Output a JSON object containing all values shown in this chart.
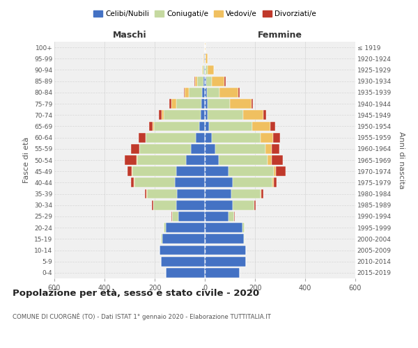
{
  "age_groups": [
    "0-4",
    "5-9",
    "10-14",
    "15-19",
    "20-24",
    "25-29",
    "30-34",
    "35-39",
    "40-44",
    "45-49",
    "50-54",
    "55-59",
    "60-64",
    "65-69",
    "70-74",
    "75-79",
    "80-84",
    "85-89",
    "90-94",
    "95-99",
    "100+"
  ],
  "birth_years": [
    "2015-2019",
    "2010-2014",
    "2005-2009",
    "2000-2004",
    "1995-1999",
    "1990-1994",
    "1985-1989",
    "1980-1984",
    "1975-1979",
    "1970-1974",
    "1965-1969",
    "1960-1964",
    "1955-1959",
    "1950-1954",
    "1945-1949",
    "1940-1944",
    "1935-1939",
    "1930-1934",
    "1925-1929",
    "1920-1924",
    "≤ 1919"
  ],
  "male": {
    "celibi": [
      155,
      175,
      180,
      170,
      155,
      105,
      115,
      110,
      120,
      115,
      75,
      55,
      35,
      22,
      18,
      15,
      10,
      5,
      2,
      2,
      0
    ],
    "coniugati": [
      0,
      0,
      0,
      5,
      10,
      25,
      90,
      120,
      160,
      175,
      195,
      205,
      200,
      180,
      145,
      100,
      55,
      25,
      5,
      2,
      0
    ],
    "vedovi": [
      0,
      0,
      0,
      0,
      0,
      0,
      0,
      2,
      2,
      2,
      2,
      2,
      2,
      5,
      10,
      18,
      15,
      10,
      5,
      2,
      0
    ],
    "divorziati": [
      0,
      0,
      0,
      0,
      0,
      2,
      5,
      8,
      12,
      15,
      48,
      32,
      28,
      15,
      10,
      8,
      2,
      2,
      0,
      0,
      0
    ]
  },
  "female": {
    "nubili": [
      140,
      165,
      165,
      155,
      150,
      95,
      110,
      105,
      110,
      95,
      55,
      42,
      28,
      18,
      12,
      10,
      8,
      5,
      2,
      2,
      0
    ],
    "coniugate": [
      0,
      0,
      0,
      2,
      8,
      22,
      88,
      118,
      160,
      180,
      195,
      200,
      195,
      172,
      140,
      90,
      50,
      22,
      8,
      2,
      0
    ],
    "vedove": [
      0,
      0,
      0,
      0,
      0,
      0,
      0,
      2,
      5,
      8,
      18,
      25,
      48,
      72,
      80,
      85,
      75,
      50,
      25,
      8,
      2
    ],
    "divorziate": [
      0,
      0,
      0,
      0,
      0,
      2,
      5,
      8,
      10,
      38,
      42,
      30,
      28,
      18,
      12,
      8,
      5,
      5,
      0,
      0,
      0
    ]
  },
  "colors": {
    "celibi": "#4472c4",
    "coniugati": "#c5d9a0",
    "vedovi": "#f0c060",
    "divorziati": "#c0392b"
  },
  "title": "Popolazione per età, sesso e stato civile - 2020",
  "subtitle": "COMUNE DI CUORGNÈ (TO) - Dati ISTAT 1° gennaio 2020 - Elaborazione TUTTITALIA.IT",
  "xlabel_left": "Maschi",
  "xlabel_right": "Femmine",
  "ylabel_left": "Fasce di età",
  "ylabel_right": "Anni di nascita",
  "xlim": 600,
  "background_color": "#f0f0f0",
  "grid_color": "#cccccc"
}
